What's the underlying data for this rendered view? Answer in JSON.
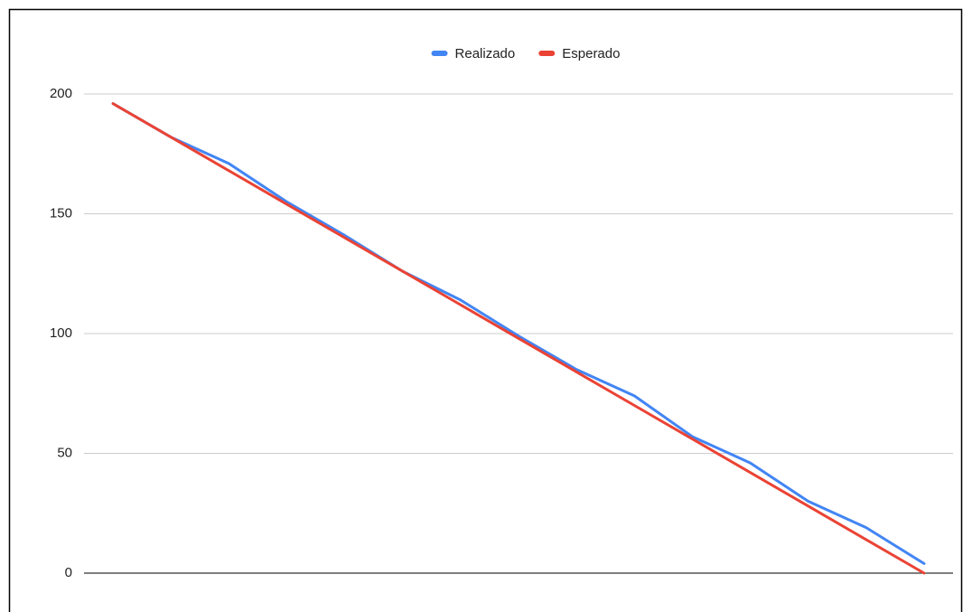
{
  "chart_data": {
    "type": "line",
    "categories": [
      null,
      null,
      null,
      null,
      null,
      null,
      null,
      null,
      null,
      null,
      null,
      null,
      null,
      null,
      null
    ],
    "series": [
      {
        "name": "Realizado",
        "color": "#4285f4",
        "values": [
          196,
          182,
          171,
          155,
          141,
          126,
          114,
          99,
          85,
          74,
          57,
          46,
          30,
          19,
          4
        ]
      },
      {
        "name": "Esperado",
        "color": "#ea4335",
        "values": [
          196,
          182,
          168,
          154,
          140,
          126,
          112,
          98,
          84,
          70,
          56,
          42,
          28,
          14,
          0
        ]
      }
    ],
    "ylim": [
      0,
      200
    ],
    "yticks": [
      0,
      50,
      100,
      150,
      200
    ],
    "grid": true,
    "legend": "top"
  }
}
